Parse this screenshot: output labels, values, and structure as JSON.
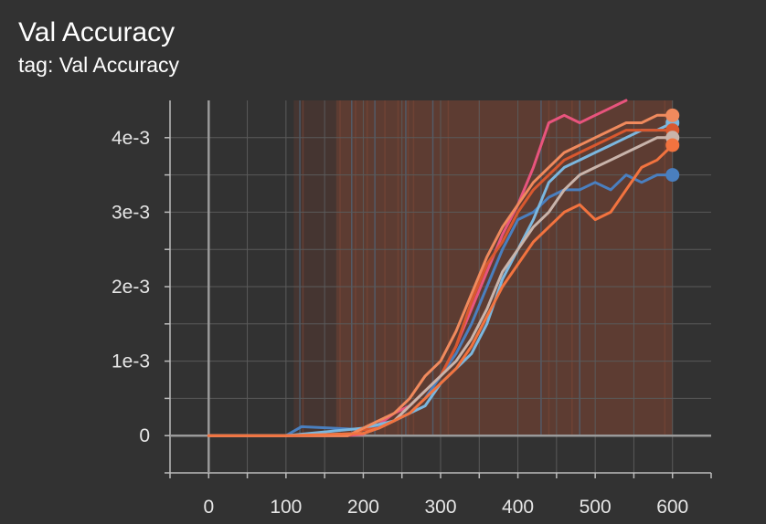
{
  "card": {
    "title": "Val Accuracy",
    "tag": "tag: Val Accuracy"
  },
  "chart_data": {
    "type": "line",
    "title": "Val Accuracy",
    "xlabel": "",
    "ylabel": "",
    "xlim": [
      -50,
      650
    ],
    "ylim": [
      -0.0005,
      0.0045
    ],
    "x_ticks": [
      0,
      100,
      200,
      300,
      400,
      500,
      600
    ],
    "x_tick_labels": [
      "0",
      "100",
      "200",
      "300",
      "400",
      "500",
      "600"
    ],
    "y_ticks": [
      0,
      0.001,
      0.002,
      0.003,
      0.004
    ],
    "y_tick_labels": [
      "0",
      "1e-3",
      "2e-3",
      "3e-3",
      "4e-3"
    ],
    "grid": true,
    "legend": "none",
    "series": [
      {
        "color": "#e8547d",
        "x": [
          0,
          100,
          180,
          200,
          220,
          240,
          260,
          280,
          300,
          320,
          340,
          360,
          380,
          400,
          420,
          440,
          460,
          480,
          500,
          520,
          540
        ],
        "y": [
          0,
          0,
          0,
          2e-05,
          0.00015,
          0.0003,
          0.0004,
          0.0006,
          0.0008,
          0.0012,
          0.0017,
          0.0022,
          0.0027,
          0.0031,
          0.0036,
          0.0042,
          0.0043,
          0.0042,
          0.0043,
          0.0044,
          0.0045
        ]
      },
      {
        "color": "#4a7fbf",
        "x": [
          0,
          100,
          120,
          160,
          200,
          240,
          260,
          280,
          300,
          320,
          340,
          360,
          380,
          400,
          420,
          440,
          460,
          480,
          500,
          520,
          540,
          560,
          580,
          600
        ],
        "y": [
          0,
          0,
          0.00012,
          0.0001,
          8e-05,
          0.0002,
          0.0003,
          0.0005,
          0.0008,
          0.0011,
          0.0015,
          0.002,
          0.0025,
          0.0029,
          0.003,
          0.0032,
          0.0033,
          0.0033,
          0.0034,
          0.0033,
          0.0035,
          0.0034,
          0.0035,
          0.0035
        ]
      },
      {
        "color": "#7bb7df",
        "x": [
          0,
          100,
          200,
          220,
          240,
          260,
          280,
          300,
          320,
          340,
          360,
          380,
          400,
          420,
          440,
          460,
          480,
          500,
          520,
          540,
          560,
          580,
          600
        ],
        "y": [
          0,
          0,
          0.0001,
          0.00015,
          0.0002,
          0.0003,
          0.0004,
          0.0007,
          0.0009,
          0.0011,
          0.0015,
          0.0021,
          0.0025,
          0.0029,
          0.0034,
          0.0036,
          0.0037,
          0.0038,
          0.0039,
          0.004,
          0.0041,
          0.0041,
          0.0042
        ]
      },
      {
        "color": "#d9582f",
        "x": [
          0,
          100,
          180,
          200,
          220,
          240,
          260,
          280,
          300,
          320,
          340,
          360,
          380,
          400,
          420,
          440,
          460,
          480,
          500,
          520,
          540,
          560,
          580,
          600
        ],
        "y": [
          0,
          0,
          0,
          8e-05,
          0.0001,
          0.0002,
          0.0004,
          0.0006,
          0.0008,
          0.0012,
          0.0018,
          0.0023,
          0.0026,
          0.003,
          0.0033,
          0.0035,
          0.0037,
          0.0038,
          0.0039,
          0.004,
          0.0041,
          0.0041,
          0.0041,
          0.0041
        ]
      },
      {
        "color": "#f08a5d",
        "x": [
          0,
          100,
          180,
          200,
          220,
          240,
          260,
          280,
          300,
          320,
          340,
          360,
          380,
          400,
          420,
          440,
          460,
          480,
          500,
          520,
          540,
          560,
          580,
          600
        ],
        "y": [
          0,
          0,
          0,
          0.0001,
          0.0002,
          0.0003,
          0.0005,
          0.0008,
          0.001,
          0.0014,
          0.0019,
          0.0024,
          0.0028,
          0.0031,
          0.0034,
          0.0036,
          0.0038,
          0.0039,
          0.004,
          0.0041,
          0.0042,
          0.0042,
          0.0043,
          0.0043
        ]
      },
      {
        "color": "#c9b4ab",
        "x": [
          0,
          100,
          200,
          220,
          240,
          260,
          280,
          300,
          320,
          340,
          360,
          380,
          400,
          420,
          440,
          460,
          480,
          500,
          520,
          540,
          560,
          580,
          600
        ],
        "y": [
          0,
          0,
          3e-05,
          0.0001,
          0.0002,
          0.0004,
          0.0006,
          0.0008,
          0.001,
          0.0013,
          0.0017,
          0.0022,
          0.0025,
          0.0028,
          0.003,
          0.0033,
          0.0035,
          0.0036,
          0.0037,
          0.0038,
          0.0039,
          0.004,
          0.004
        ]
      },
      {
        "color": "#f2733f",
        "x": [
          0,
          100,
          200,
          220,
          240,
          260,
          280,
          300,
          320,
          340,
          360,
          380,
          400,
          420,
          440,
          460,
          480,
          500,
          520,
          540,
          560,
          580,
          600
        ],
        "y": [
          0,
          0,
          3e-05,
          0.0001,
          0.0002,
          0.0003,
          0.0005,
          0.0007,
          0.0009,
          0.0012,
          0.0016,
          0.002,
          0.0023,
          0.0026,
          0.0028,
          0.003,
          0.0031,
          0.0029,
          0.003,
          0.0033,
          0.0036,
          0.0037,
          0.0039
        ]
      }
    ]
  }
}
